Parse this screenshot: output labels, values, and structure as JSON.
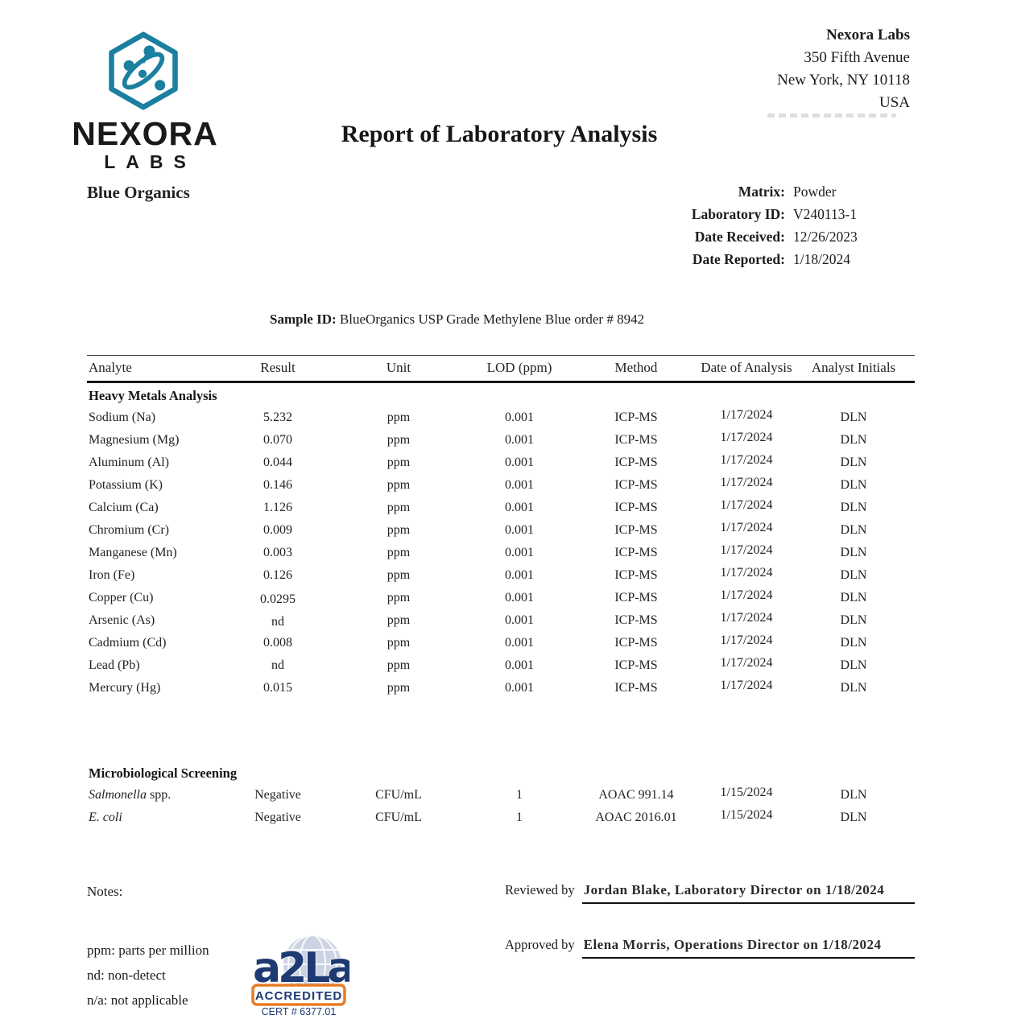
{
  "logo": {
    "brand": "NEXORA",
    "sub": "LABS",
    "client": "Blue Organics"
  },
  "lab_address": {
    "company": "Nexora Labs",
    "line1": "350 Fifth Avenue",
    "line2": "New York, NY 10118",
    "line3": "USA"
  },
  "title": "Report of Laboratory Analysis",
  "meta": {
    "rows": [
      {
        "label": "Matrix:",
        "value": "Powder"
      },
      {
        "label": "Laboratory ID:",
        "value": "V240113-1"
      },
      {
        "label": "Date Received:",
        "value": "12/26/2023"
      },
      {
        "label": "Date Reported:",
        "value": "1/18/2024"
      }
    ]
  },
  "sample": {
    "label": "Sample ID:",
    "value": "BlueOrganics USP Grade Methylene Blue order # 8942"
  },
  "table": {
    "headers": [
      "Analyte",
      "Result",
      "Unit",
      "LOD (ppm)",
      "Method",
      "Date of Analysis",
      "Analyst Initials"
    ],
    "sections": [
      {
        "title": "Heavy Metals Analysis",
        "gap_before": false,
        "rows": [
          {
            "cells": [
              "Sodium (Na)",
              "5.232",
              "ppm",
              "0.001",
              "ICP-MS",
              "1/17/2024",
              "DLN"
            ]
          },
          {
            "cells": [
              "Magnesium (Mg)",
              "0.070",
              "ppm",
              "0.001",
              "ICP-MS",
              "1/17/2024",
              "DLN"
            ]
          },
          {
            "cells": [
              "Aluminum (Al)",
              "0.044",
              "ppm",
              "0.001",
              "ICP-MS",
              "1/17/2024",
              "DLN"
            ]
          },
          {
            "cells": [
              "Potassium (K)",
              "0.146",
              "ppm",
              "0.001",
              "ICP-MS",
              "1/17/2024",
              "DLN"
            ]
          },
          {
            "cells": [
              "Calcium (Ca)",
              "1.126",
              "ppm",
              "0.001",
              "ICP-MS",
              "1/17/2024",
              "DLN"
            ]
          },
          {
            "cells": [
              "Chromium (Cr)",
              "0.009",
              "ppm",
              "0.001",
              "ICP-MS",
              "1/17/2024",
              "DLN"
            ]
          },
          {
            "cells": [
              "Manganese (Mn)",
              "0.003",
              "ppm",
              "0.001",
              "ICP-MS",
              "1/17/2024",
              "DLN"
            ]
          },
          {
            "cells": [
              "Iron (Fe)",
              "0.126",
              "ppm",
              "0.001",
              "ICP-MS",
              "1/17/2024",
              "DLN"
            ]
          },
          {
            "cells": [
              "Copper (Cu)",
              "0.0295",
              "ppm",
              "0.001",
              "ICP-MS",
              "1/17/2024",
              "DLN"
            ]
          },
          {
            "cells": [
              "Arsenic (As)",
              "nd",
              "ppm",
              "0.001",
              "ICP-MS",
              "1/17/2024",
              "DLN"
            ]
          },
          {
            "cells": [
              "Cadmium (Cd)",
              "0.008",
              "ppm",
              "0.001",
              "ICP-MS",
              "1/17/2024",
              "DLN"
            ]
          },
          {
            "cells": [
              "Lead (Pb)",
              "nd",
              "ppm",
              "0.001",
              "ICP-MS",
              "1/17/2024",
              "DLN"
            ]
          },
          {
            "cells": [
              "Mercury (Hg)",
              "0.015",
              "ppm",
              "0.001",
              "ICP-MS",
              "1/17/2024",
              "DLN"
            ]
          }
        ]
      },
      {
        "title": "Microbiological Screening",
        "gap_before": true,
        "rows": [
          {
            "cells": [
              "Salmonella spp.",
              "Negative",
              "CFU/mL",
              "1",
              "AOAC 991.14",
              "1/15/2024",
              "DLN"
            ],
            "italic_prefix": "Salmonella"
          },
          {
            "cells": [
              "E. coli",
              "Negative",
              "CFU/mL",
              "1",
              "AOAC 2016.01",
              "1/15/2024",
              "DLN"
            ],
            "italic_prefix": "E. coli"
          }
        ]
      }
    ]
  },
  "footer": {
    "notes_label": "Notes:",
    "reviewed_label": "Reviewed by",
    "reviewed_value": "Jordan Blake, Laboratory Director on 1/18/2024",
    "approved_label": "Approved by",
    "approved_value": "Elena Morris, Operations Director on 1/18/2024",
    "abbreviations": [
      "ppm: parts per million",
      "nd: non-detect",
      "n/a: not applicable"
    ],
    "accreditation": {
      "brand": "a2La",
      "label": "ACCREDITED",
      "cert": "CERT # 6377.01"
    }
  },
  "colors": {
    "teal": "#1b80a0",
    "navy": "#1e3a72",
    "orange": "#e87c25",
    "ink": "#1c1c1c"
  }
}
